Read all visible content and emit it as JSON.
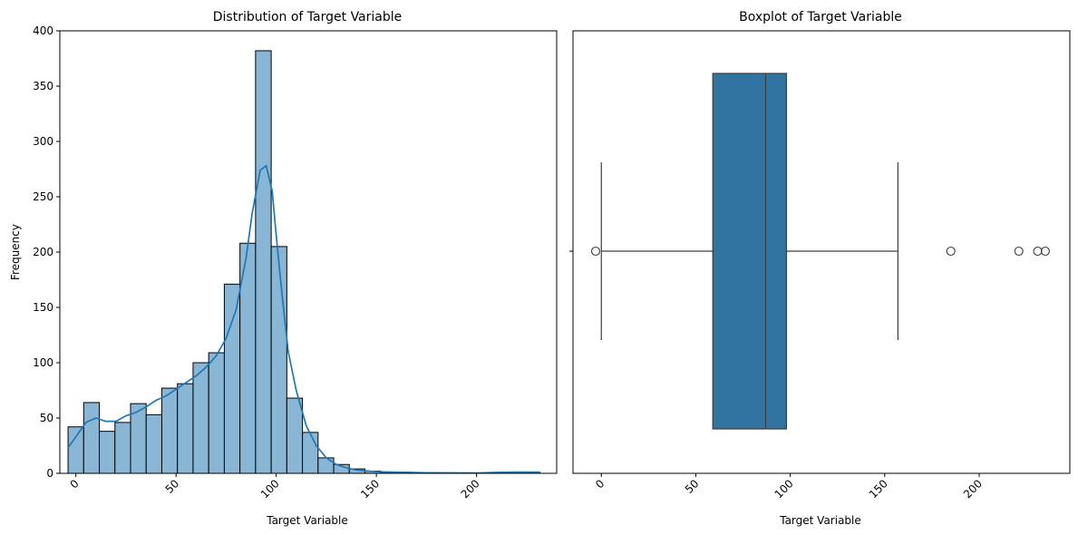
{
  "chart_data": [
    {
      "type": "bar",
      "title": "Distribution of Target Variable",
      "xlabel": "Target Variable",
      "ylabel": "Frequency",
      "xlim": [
        -8,
        240
      ],
      "ylim": [
        0,
        400
      ],
      "xticks": [
        0,
        50,
        100,
        150,
        200
      ],
      "xtick_labels": [
        "0",
        "50",
        "100",
        "150",
        "200"
      ],
      "yticks": [
        0,
        50,
        100,
        150,
        200,
        250,
        300,
        350,
        400
      ],
      "ytick_labels": [
        "0",
        "50",
        "100",
        "150",
        "200",
        "250",
        "300",
        "350",
        "400"
      ],
      "bin_width": 7.8,
      "bin_start": -3.9,
      "values": [
        42,
        64,
        38,
        46,
        63,
        53,
        77,
        81,
        100,
        109,
        171,
        208,
        382,
        205,
        68,
        37,
        14,
        8,
        4,
        2,
        1,
        1,
        0,
        0,
        0,
        0,
        0,
        0,
        0,
        1
      ],
      "bar_color": "#8ab6d6",
      "kde_color": "#1f77b4",
      "kde": {
        "x": [
          -4,
          0,
          5,
          10,
          15,
          20,
          25,
          30,
          35,
          40,
          45,
          50,
          55,
          60,
          65,
          70,
          75,
          80,
          85,
          88,
          92,
          95,
          98,
          100,
          103,
          106,
          110,
          115,
          120,
          125,
          130,
          135,
          140,
          150,
          160,
          175,
          190,
          200,
          210,
          220,
          232
        ],
        "y": [
          23,
          33,
          46,
          50,
          47,
          47,
          52,
          55,
          60,
          66,
          70,
          76,
          82,
          88,
          96,
          106,
          122,
          148,
          195,
          235,
          274,
          278,
          255,
          215,
          160,
          110,
          75,
          43,
          25,
          14,
          8,
          5,
          3,
          1.5,
          1,
          0.5,
          0.4,
          0.3,
          0.8,
          1.2,
          1
        ]
      },
      "grid": false
    },
    {
      "type": "box",
      "title": "Boxplot of Target Variable",
      "xlabel": "Target Variable",
      "xlim": [
        -15,
        248
      ],
      "xticks": [
        0,
        50,
        100,
        150,
        200
      ],
      "xtick_labels": [
        "0",
        "50",
        "100",
        "150",
        "200"
      ],
      "stats": {
        "whislo": 0,
        "q1": 59,
        "median": 87,
        "q3": 98,
        "whishi": 157,
        "fliers": [
          -3,
          185,
          221,
          231,
          235
        ]
      },
      "box_color": "#3274a1",
      "grid": false
    }
  ]
}
